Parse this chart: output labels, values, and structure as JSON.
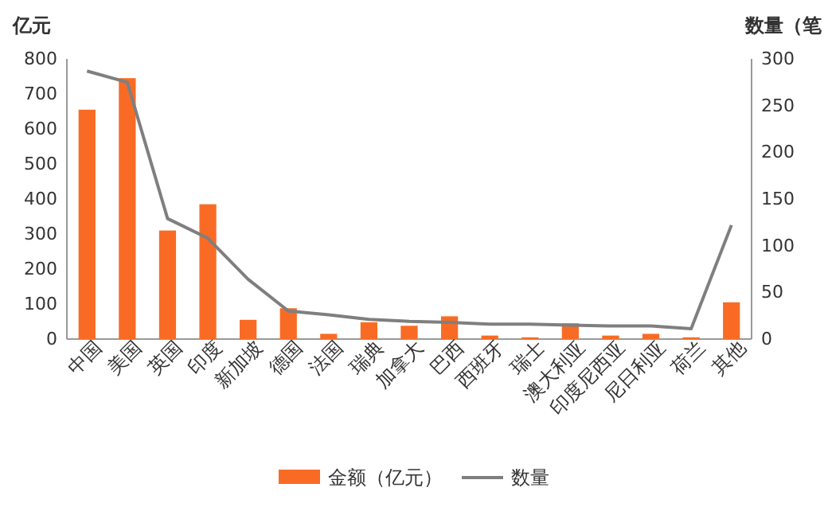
{
  "chart_data": {
    "type": "bar",
    "ylabel": "亿元",
    "y2label": "数量（笔",
    "categories": [
      "中国",
      "美国",
      "英国",
      "印度",
      "新加坡",
      "德国",
      "法国",
      "瑞典",
      "加拿大",
      "巴西",
      "西班牙",
      "瑞士",
      "澳大利亚",
      "印度尼西亚",
      "尼日利亚",
      "荷兰",
      "其他"
    ],
    "series": [
      {
        "name": "金额（亿元）",
        "color": "#f96b24",
        "values": [
          655,
          745,
          310,
          385,
          55,
          88,
          15,
          48,
          38,
          65,
          10,
          5,
          45,
          10,
          15,
          5,
          105
        ]
      },
      {
        "name": "数量",
        "type": "line",
        "axis": "y2",
        "color": "#7f7f7f",
        "values": [
          287,
          275,
          129,
          108,
          64,
          30,
          26,
          21,
          19,
          18,
          16,
          16,
          15,
          14,
          14,
          11,
          122
        ]
      }
    ],
    "ylim": [
      0,
      800
    ],
    "yticks": [
      0,
      100,
      200,
      300,
      400,
      500,
      600,
      700,
      800
    ],
    "y2lim": [
      0,
      300
    ],
    "y2ticks": [
      0,
      50,
      100,
      150,
      200,
      250,
      300
    ],
    "grid": false,
    "legend": "bottom"
  }
}
